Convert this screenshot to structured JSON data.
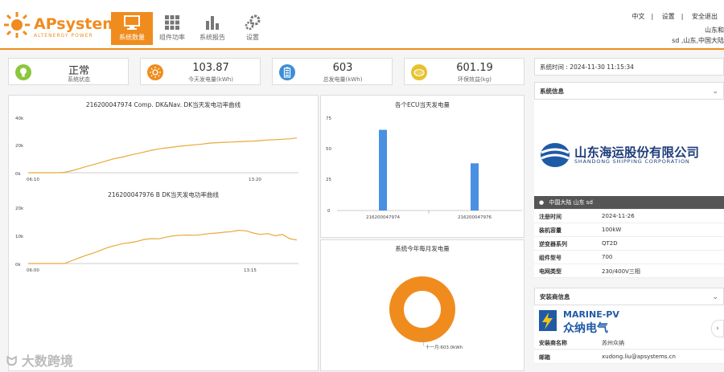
{
  "brand": {
    "name": "APsystems",
    "tagline": "ALTENERGY POWER"
  },
  "nav": [
    {
      "label": "系统数量",
      "icon": "monitor-icon",
      "active": true
    },
    {
      "label": "组件功率",
      "icon": "grid-icon",
      "active": false
    },
    {
      "label": "系统报告",
      "icon": "bar-chart-icon",
      "active": false
    },
    {
      "label": "设置",
      "icon": "gear-icon",
      "active": false
    }
  ],
  "top_links": {
    "language": "中文",
    "settings": "设置",
    "logout": "安全退出"
  },
  "location": {
    "line1": "山东和",
    "line2": "sd ,山东,中国大陆"
  },
  "stats": [
    {
      "value": "正常",
      "label": "系统状态",
      "color": "#8cc63f",
      "icon": "bulb-icon"
    },
    {
      "value": "103.87",
      "label": "今天发电量(kWh)",
      "color": "#f08c1e",
      "icon": "sun-icon"
    },
    {
      "value": "603",
      "label": "总发电量(kWh)",
      "color": "#3d8fd6",
      "icon": "battery-icon"
    },
    {
      "value": "601.19",
      "label": "环保效益(kg)",
      "color": "#e8c12e",
      "icon": "co2-icon"
    }
  ],
  "chart1": {
    "title": "216200047974 Comp. DK&Nav. DK当天发电功率曲线",
    "x_ticks": [
      "06:10",
      "13:20"
    ],
    "y_ticks": [
      "40k",
      "20k",
      "0k"
    ]
  },
  "chart2": {
    "title": "216200047976 B DK当天发电功率曲线",
    "x_ticks": [
      "06:00",
      "13:15"
    ],
    "y_ticks": [
      "20k",
      "10k",
      "0k"
    ]
  },
  "chart_data": [
    {
      "type": "line",
      "title": "216200047974 Comp. DK&Nav. DK当天发电功率曲线",
      "ylim": [
        0,
        40000
      ],
      "series": [
        {
          "values": [
            0,
            0,
            0,
            0,
            0,
            300,
            1500,
            3000,
            4500,
            6000,
            7500,
            9000,
            10500,
            11500,
            12800,
            14000,
            15200,
            16500,
            17500,
            18200,
            18800,
            19500,
            20000,
            20500,
            21000,
            21700,
            22000,
            22300,
            22500,
            22700,
            23000,
            23200,
            23500,
            24000,
            24200,
            24500,
            24800,
            25500
          ]
        }
      ]
    },
    {
      "type": "line",
      "title": "216200047976 B DK当天发电功率曲线",
      "ylim": [
        0,
        20000
      ],
      "series": [
        {
          "values": [
            0,
            0,
            0,
            0,
            0,
            0,
            1000,
            2000,
            3000,
            3800,
            4800,
            5800,
            6500,
            7200,
            7500,
            8000,
            8700,
            9000,
            8900,
            9500,
            10000,
            10200,
            10300,
            10200,
            10500,
            10800,
            11000,
            11300,
            11500,
            12000,
            11800,
            11000,
            10500,
            10800,
            10000,
            10500,
            9000,
            8500
          ]
        }
      ]
    },
    {
      "type": "bar",
      "title": "各个ECU当天发电量",
      "categories": [
        "216200047974",
        "216200047976"
      ],
      "values": [
        65.5,
        38.3
      ],
      "ylim": [
        0,
        75
      ],
      "y_ticks": [
        "75",
        "50",
        "25",
        "0"
      ]
    },
    {
      "type": "pie",
      "title": "系统今年每月发电量",
      "slices": [
        {
          "label": "十一月:603.0kWh",
          "value": 603.0
        }
      ]
    }
  ],
  "system_time": "系统时间 : 2024-11-30 11:15:34",
  "system_info": {
    "title": "系统信息",
    "company_cn": "山东海运股份有限公司",
    "company_en": "SHANDONG SHIPPING CORPORATION",
    "location_bar": "中国大陆 山东 sd",
    "rows": [
      {
        "k": "注册时间",
        "v": "2024-11-26"
      },
      {
        "k": "装机容量",
        "v": "100kW"
      },
      {
        "k": "逆变器系列",
        "v": "QT2D"
      },
      {
        "k": "组件型号",
        "v": "700"
      },
      {
        "k": "电网类型",
        "v": "230/400V三相"
      }
    ]
  },
  "installer": {
    "title": "安装商信息",
    "logo_en": "MARINE-PV",
    "logo_cn": "众纳电气",
    "rows": [
      {
        "k": "安装商名称",
        "v": "苏州众纳"
      },
      {
        "k": "邮箱",
        "v": "xudong.liu@apsystems.cn"
      }
    ]
  },
  "watermark": "大数跨境",
  "colors": {
    "accent": "#f08c1e",
    "line": "#e8a93a",
    "bar": "#4a90e2"
  }
}
